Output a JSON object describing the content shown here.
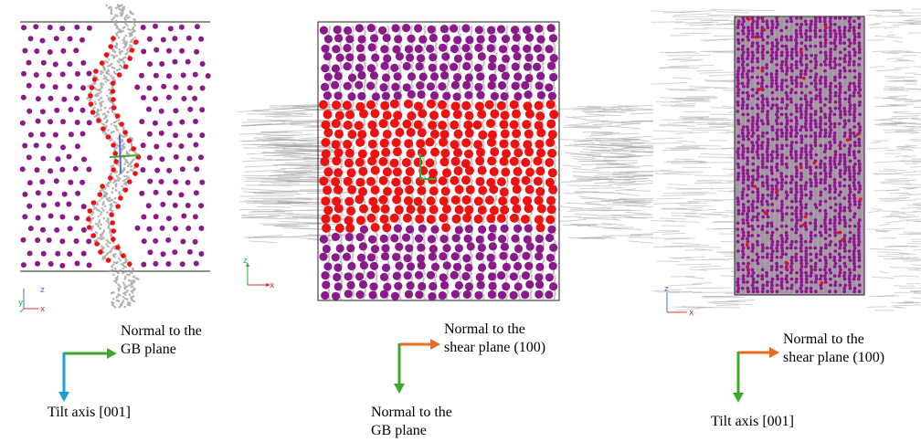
{
  "colors": {
    "matrix_atom": "#8a1a8a",
    "gb_atom": "#ee1111",
    "dislocation_trace": "#a0a0a0",
    "arrow_green": "#3faa2a",
    "arrow_blue": "#1f9ad6",
    "arrow_orange": "#ea6a22",
    "axis_z": "#4a6ad0",
    "axis_x": "#e03030",
    "axis_y": "#30b030"
  },
  "panel1": {
    "triad": {
      "z": "z",
      "x": "x",
      "y": "y"
    },
    "legend": {
      "horizontal_label": "Normal to the\nGB plane",
      "vertical_label": "Tilt axis [001]"
    }
  },
  "panel2": {
    "triad": {
      "z": "z",
      "x": "x"
    },
    "legend": {
      "horizontal_label": "Normal to the\nshear plane (100)",
      "vertical_label": "Normal to the\nGB plane"
    }
  },
  "panel3": {
    "triad": {
      "z": "z",
      "x": "x"
    },
    "legend": {
      "horizontal_label": "Normal to the\nshear plane (100)",
      "vertical_label": "Tilt axis [001]"
    }
  }
}
